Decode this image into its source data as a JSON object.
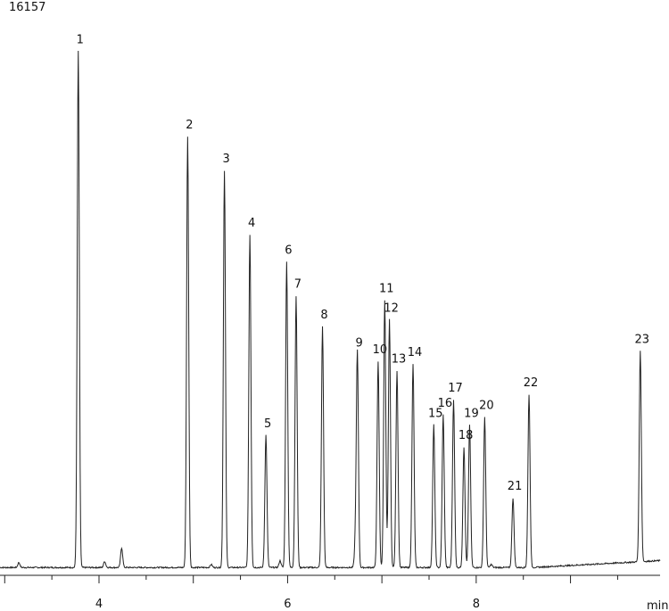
{
  "chart_data": {
    "type": "line",
    "title": "16157",
    "xlabel": "min",
    "ylabel": "",
    "x_ticks": [
      4,
      6,
      8
    ],
    "xlim": [
      2.95,
      9.95
    ],
    "ylim": [
      0,
      16157
    ],
    "grid": false,
    "series": [
      {
        "peaks": [
          {
            "label": "1",
            "x": 3.78,
            "y": 15200
          },
          {
            "label": "2",
            "x": 4.94,
            "y": 12700
          },
          {
            "label": "3",
            "x": 5.33,
            "y": 11700
          },
          {
            "label": "4",
            "x": 5.6,
            "y": 9800
          },
          {
            "label": "5",
            "x": 5.77,
            "y": 3900
          },
          {
            "label": "6",
            "x": 5.99,
            "y": 9000
          },
          {
            "label": "7",
            "x": 6.09,
            "y": 8000
          },
          {
            "label": "8",
            "x": 6.37,
            "y": 7100
          },
          {
            "label": "9",
            "x": 6.74,
            "y": 6270
          },
          {
            "label": "10",
            "x": 6.96,
            "y": 6070
          },
          {
            "label": "11",
            "x": 7.03,
            "y": 7870
          },
          {
            "label": "12",
            "x": 7.08,
            "y": 7300
          },
          {
            "label": "13",
            "x": 7.16,
            "y": 5800
          },
          {
            "label": "14",
            "x": 7.33,
            "y": 6000
          },
          {
            "label": "15",
            "x": 7.55,
            "y": 4200
          },
          {
            "label": "16",
            "x": 7.65,
            "y": 4500
          },
          {
            "label": "17",
            "x": 7.76,
            "y": 4950
          },
          {
            "label": "18",
            "x": 7.87,
            "y": 3550
          },
          {
            "label": "19",
            "x": 7.93,
            "y": 4200
          },
          {
            "label": "20",
            "x": 8.09,
            "y": 4430
          },
          {
            "label": "21",
            "x": 8.39,
            "y": 2050
          },
          {
            "label": "22",
            "x": 8.56,
            "y": 5100
          },
          {
            "label": "23",
            "x": 9.74,
            "y": 6200
          }
        ],
        "minor_peaks": [
          {
            "x": 3.15,
            "y": 150
          },
          {
            "x": 4.06,
            "y": 180
          },
          {
            "x": 4.24,
            "y": 580
          },
          {
            "x": 5.19,
            "y": 90
          },
          {
            "x": 5.92,
            "y": 200
          },
          {
            "x": 6.72,
            "y": 700
          },
          {
            "x": 8.16,
            "y": 90
          }
        ]
      }
    ]
  }
}
